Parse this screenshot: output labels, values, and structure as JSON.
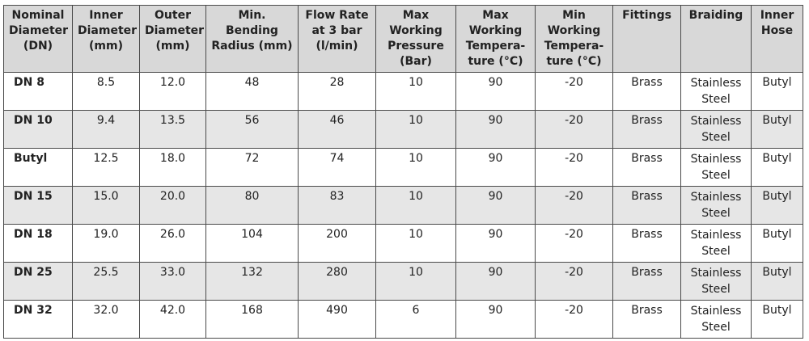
{
  "table": {
    "headers": [
      "Nominal\nDiameter\n(DN)",
      "Inner\nDiameter\n(mm)",
      "Outer\nDiameter\n(mm)",
      "Min.\nBending\nRadius (mm)",
      "Flow Rate\nat 3 bar\n(l/min)",
      "Max\nWorking\nPressure\n(Bar)",
      "Max\nWorking\nTempera-\nture (°C)",
      "Min\nWorking\nTempera-\nture (°C)",
      "Fittings",
      "Braiding",
      "Inner\nHose"
    ],
    "rows": [
      [
        "DN 8",
        "8.5",
        "12.0",
        "48",
        "28",
        "10",
        "90",
        "-20",
        "Brass",
        "Stainless Steel",
        "Butyl"
      ],
      [
        "DN 10",
        "9.4",
        "13.5",
        "56",
        "46",
        "10",
        "90",
        "-20",
        "Brass",
        "Stainless Steel",
        "Butyl"
      ],
      [
        "Butyl",
        "12.5",
        "18.0",
        "72",
        "74",
        "10",
        "90",
        "-20",
        "Brass",
        "Stainless Steel",
        "Butyl"
      ],
      [
        "DN 15",
        "15.0",
        "20.0",
        "80",
        "83",
        "10",
        "90",
        "-20",
        "Brass",
        "Stainless Steel",
        "Butyl"
      ],
      [
        "DN 18",
        "19.0",
        "26.0",
        "104",
        "200",
        "10",
        "90",
        "-20",
        "Brass",
        "Stainless Steel",
        "Butyl"
      ],
      [
        "DN 25",
        "25.5",
        "33.0",
        "132",
        "280",
        "10",
        "90",
        "-20",
        "Brass",
        "Stainless Steel",
        "Butyl"
      ],
      [
        "DN 32",
        "32.0",
        "42.0",
        "168",
        "490",
        "6",
        "90",
        "-20",
        "Brass",
        "Stainless Steel",
        "Butyl"
      ]
    ]
  },
  "colors": {
    "header_bg": "#d8d8d8",
    "shaded_row_bg": "#e6e6e6",
    "border": "#4a4a4a"
  }
}
